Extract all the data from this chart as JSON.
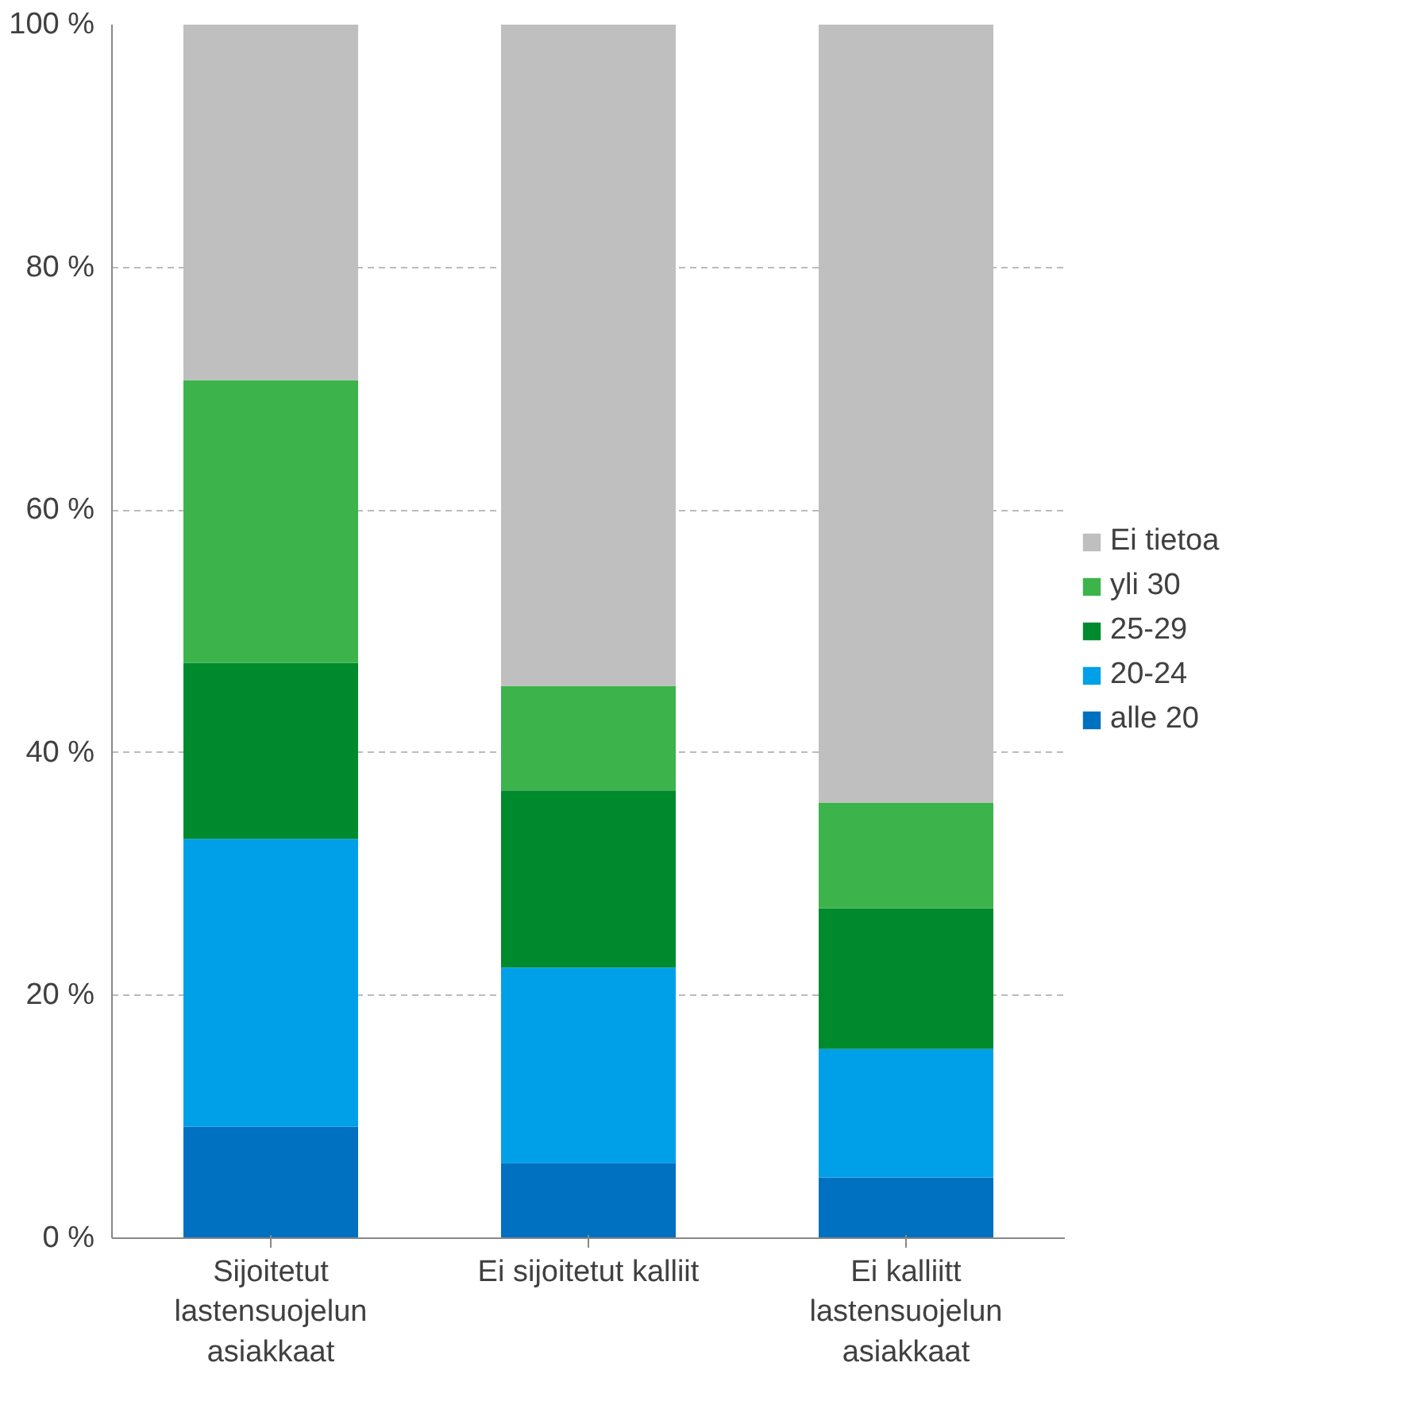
{
  "chart_data": {
    "type": "bar",
    "stacked": true,
    "categories": [
      "Sijoitetut lastensuojelun asiakkaat",
      "Ei sijoitetut kalliit",
      "Ei kalliitt lastensuojelun asiakkaat"
    ],
    "series": [
      {
        "name": "alle 20",
        "color": "#0070c0",
        "values": [
          9.2,
          6.2,
          5.0
        ]
      },
      {
        "name": "20-24",
        "color": "#00a0e9",
        "values": [
          23.7,
          16.1,
          10.6
        ]
      },
      {
        "name": "25-29",
        "color": "#008a2e",
        "values": [
          14.5,
          14.6,
          11.6
        ]
      },
      {
        "name": "yli 30",
        "color": "#3cb44b",
        "values": [
          23.3,
          8.6,
          8.7
        ]
      },
      {
        "name": "Ei tietoa",
        "color": "#bfbfbf",
        "values": [
          29.3,
          54.5,
          64.1
        ]
      }
    ],
    "ylim": [
      0,
      100
    ],
    "yticks": [
      {
        "value": 0,
        "label": "0 %"
      },
      {
        "value": 20,
        "label": "20 %"
      },
      {
        "value": 40,
        "label": "40 %"
      },
      {
        "value": 60,
        "label": "60 %"
      },
      {
        "value": 80,
        "label": "80 %"
      },
      {
        "value": 100,
        "label": "100 %"
      }
    ],
    "grid": "y",
    "legend": "right"
  }
}
